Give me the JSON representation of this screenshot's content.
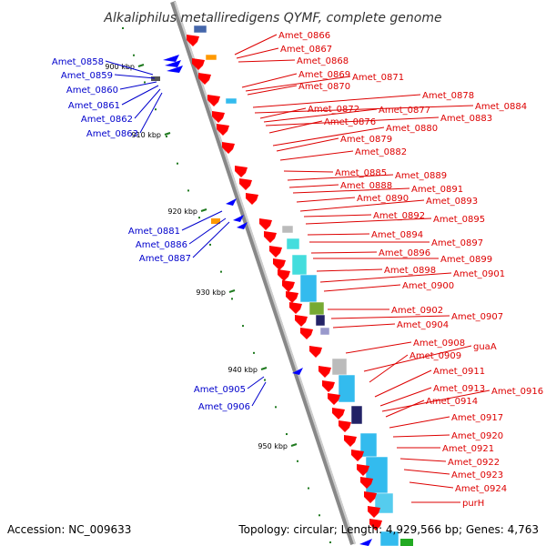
{
  "title": "Alkaliphilus metalliredigens QYMF, complete genome",
  "accession_text": "Accession: NC_009633",
  "summary_text": "Topology: circular; Length: 4,929,566 bp; Genes: 4,763",
  "colors": {
    "forward_label": "#0000cc",
    "reverse_label": "#dd0000",
    "forward_feature": "#0000ff",
    "reverse_feature": "#ff0000",
    "backbone": "#999999",
    "tick": "#1f7a1f",
    "cog_light_blue": "#33bbee",
    "cog_cyan": "#44dddd",
    "cog_grey": "#bbbbbb",
    "cog_navy": "#222266",
    "cog_olive": "#77aa33",
    "cog_orange": "#ff9900"
  },
  "scale_ticks": [
    "900 kbp",
    "910 kbp",
    "920 kbp",
    "930 kbp",
    "940 kbp",
    "950 kbp"
  ],
  "forward_genes": [
    "Amet_0858",
    "Amet_0859",
    "Amet_0860",
    "Amet_0861",
    "Amet_0862",
    "Amet_0863",
    "Amet_0881",
    "Amet_0886",
    "Amet_0887",
    "Amet_0905",
    "Amet_0906"
  ],
  "reverse_genes": [
    "Amet_0866",
    "Amet_0867",
    "Amet_0868",
    "Amet_0869",
    "Amet_0871",
    "Amet_0870",
    "Amet_0878",
    "Amet_0884",
    "Amet_0872",
    "Amet_0877",
    "Amet_0883",
    "Amet_0876",
    "Amet_0880",
    "Amet_0879",
    "Amet_0882",
    "Amet_0885",
    "Amet_0889",
    "Amet_0888",
    "Amet_0891",
    "Amet_0890",
    "Amet_0893",
    "Amet_0892",
    "Amet_0895",
    "Amet_0894",
    "Amet_0897",
    "Amet_0896",
    "Amet_0899",
    "Amet_0898",
    "Amet_0901",
    "Amet_0900",
    "Amet_0902",
    "Amet_0907",
    "Amet_0904",
    "Amet_0908",
    "guaA",
    "Amet_0909",
    "Amet_0911",
    "Amet_0913",
    "Amet_0916",
    "Amet_0914",
    "Amet_0917",
    "Amet_0920",
    "Amet_0921",
    "Amet_0922",
    "Amet_0923",
    "Amet_0924",
    "purH"
  ]
}
